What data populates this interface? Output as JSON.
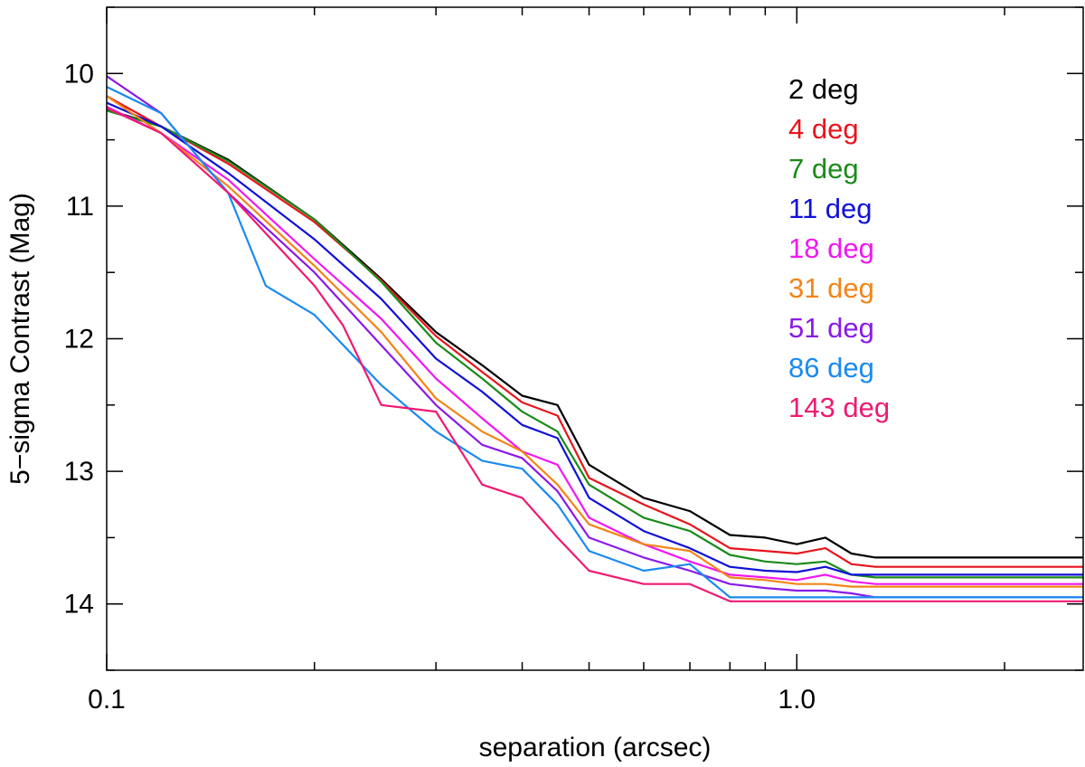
{
  "chart_data": {
    "type": "line",
    "xlabel": "separation (arcsec)",
    "ylabel": "5−sigma Contrast (Mag)",
    "xscale": "log",
    "xlim": [
      0.1,
      2.6
    ],
    "ylim": [
      14.5,
      9.5
    ],
    "y_inverted": true,
    "grid": false,
    "legend_placement": "top-right",
    "x_ticks_major": [
      0.1,
      1.0
    ],
    "x_tick_labels": [
      "0.1",
      "1.0"
    ],
    "x_ticks_minor": [
      0.2,
      0.3,
      0.4,
      0.5,
      0.6,
      0.7,
      0.8,
      0.9,
      2.0
    ],
    "y_ticks_major": [
      10,
      11,
      12,
      13,
      14
    ],
    "y_tick_labels": [
      "10",
      "11",
      "12",
      "13",
      "14"
    ],
    "y_ticks_minor": [
      9.5,
      10.5,
      11.5,
      12.5,
      13.5,
      14.5
    ],
    "series": [
      {
        "name": "2 deg",
        "color": "#000000",
        "x": [
          0.1,
          0.12,
          0.15,
          0.2,
          0.25,
          0.3,
          0.35,
          0.4,
          0.45,
          0.5,
          0.6,
          0.7,
          0.8,
          0.9,
          1.0,
          1.1,
          1.2,
          1.3,
          2.6
        ],
        "y": [
          10.27,
          10.4,
          10.65,
          11.1,
          11.55,
          11.95,
          12.2,
          12.43,
          12.5,
          12.95,
          13.2,
          13.3,
          13.48,
          13.5,
          13.55,
          13.5,
          13.62,
          13.65,
          13.65
        ]
      },
      {
        "name": "4 deg",
        "color": "#e8141c",
        "x": [
          0.1,
          0.12,
          0.15,
          0.2,
          0.25,
          0.3,
          0.35,
          0.4,
          0.45,
          0.5,
          0.6,
          0.7,
          0.8,
          0.9,
          1.0,
          1.1,
          1.2,
          1.3,
          2.6
        ],
        "y": [
          10.17,
          10.4,
          10.68,
          11.12,
          11.56,
          11.98,
          12.25,
          12.48,
          12.58,
          13.05,
          13.25,
          13.4,
          13.58,
          13.6,
          13.62,
          13.58,
          13.7,
          13.72,
          13.72
        ]
      },
      {
        "name": "7 deg",
        "color": "#1a8b1a",
        "x": [
          0.1,
          0.12,
          0.15,
          0.2,
          0.25,
          0.3,
          0.35,
          0.4,
          0.45,
          0.5,
          0.6,
          0.7,
          0.8,
          0.9,
          1.0,
          1.1,
          1.2,
          1.3,
          2.6
        ],
        "y": [
          10.28,
          10.4,
          10.66,
          11.1,
          11.57,
          12.03,
          12.3,
          12.55,
          12.7,
          13.1,
          13.35,
          13.45,
          13.63,
          13.68,
          13.7,
          13.68,
          13.78,
          13.8,
          13.8
        ]
      },
      {
        "name": "11 deg",
        "color": "#1010d8",
        "x": [
          0.1,
          0.12,
          0.15,
          0.2,
          0.25,
          0.3,
          0.35,
          0.4,
          0.45,
          0.5,
          0.6,
          0.7,
          0.8,
          0.9,
          1.0,
          1.1,
          1.2,
          1.3,
          2.6
        ],
        "y": [
          10.22,
          10.4,
          10.75,
          11.25,
          11.7,
          12.15,
          12.4,
          12.65,
          12.75,
          13.2,
          13.45,
          13.58,
          13.72,
          13.75,
          13.76,
          13.72,
          13.78,
          13.78,
          13.78
        ]
      },
      {
        "name": "18 deg",
        "color": "#f018f0",
        "x": [
          0.1,
          0.12,
          0.15,
          0.2,
          0.25,
          0.3,
          0.35,
          0.4,
          0.45,
          0.5,
          0.6,
          0.7,
          0.8,
          0.9,
          1.0,
          1.1,
          1.2,
          1.3,
          2.6
        ],
        "y": [
          10.25,
          10.45,
          10.8,
          11.4,
          11.85,
          12.3,
          12.6,
          12.85,
          12.95,
          13.35,
          13.55,
          13.68,
          13.78,
          13.8,
          13.82,
          13.78,
          13.83,
          13.85,
          13.85
        ]
      },
      {
        "name": "31 deg",
        "color": "#f28518",
        "x": [
          0.1,
          0.12,
          0.15,
          0.2,
          0.25,
          0.3,
          0.35,
          0.4,
          0.45,
          0.5,
          0.6,
          0.7,
          0.8,
          0.9,
          1.0,
          1.1,
          1.2,
          1.3,
          2.6
        ],
        "y": [
          10.17,
          10.45,
          10.85,
          11.45,
          11.95,
          12.45,
          12.7,
          12.85,
          13.1,
          13.4,
          13.55,
          13.6,
          13.8,
          13.82,
          13.85,
          13.85,
          13.87,
          13.87,
          13.87
        ]
      },
      {
        "name": "51 deg",
        "color": "#8a1ae8",
        "x": [
          0.1,
          0.12,
          0.15,
          0.2,
          0.25,
          0.3,
          0.35,
          0.4,
          0.45,
          0.5,
          0.6,
          0.7,
          0.8,
          0.9,
          1.0,
          1.1,
          1.2,
          1.3,
          2.6
        ],
        "y": [
          10.02,
          10.3,
          10.9,
          11.5,
          12.05,
          12.5,
          12.8,
          12.9,
          13.15,
          13.5,
          13.65,
          13.75,
          13.85,
          13.88,
          13.9,
          13.9,
          13.92,
          13.95,
          13.95
        ]
      },
      {
        "name": "86 deg",
        "color": "#1a8af0",
        "x": [
          0.1,
          0.12,
          0.15,
          0.17,
          0.2,
          0.25,
          0.3,
          0.35,
          0.4,
          0.45,
          0.5,
          0.6,
          0.7,
          0.8,
          0.9,
          1.0,
          1.1,
          1.2,
          1.3,
          2.6
        ],
        "y": [
          10.1,
          10.3,
          10.9,
          11.6,
          11.82,
          12.35,
          12.7,
          12.92,
          12.98,
          13.25,
          13.6,
          13.75,
          13.7,
          13.95,
          13.95,
          13.95,
          13.95,
          13.95,
          13.95,
          13.95
        ]
      },
      {
        "name": "143 deg",
        "color": "#ef1a72",
        "x": [
          0.1,
          0.12,
          0.15,
          0.2,
          0.22,
          0.25,
          0.3,
          0.35,
          0.4,
          0.45,
          0.5,
          0.6,
          0.7,
          0.8,
          0.9,
          1.0,
          1.1,
          1.2,
          1.3,
          2.6
        ],
        "y": [
          10.26,
          10.45,
          10.9,
          11.6,
          11.9,
          12.5,
          12.55,
          13.1,
          13.2,
          13.5,
          13.75,
          13.85,
          13.85,
          13.98,
          13.98,
          13.98,
          13.98,
          13.98,
          13.98,
          13.98
        ]
      }
    ]
  }
}
